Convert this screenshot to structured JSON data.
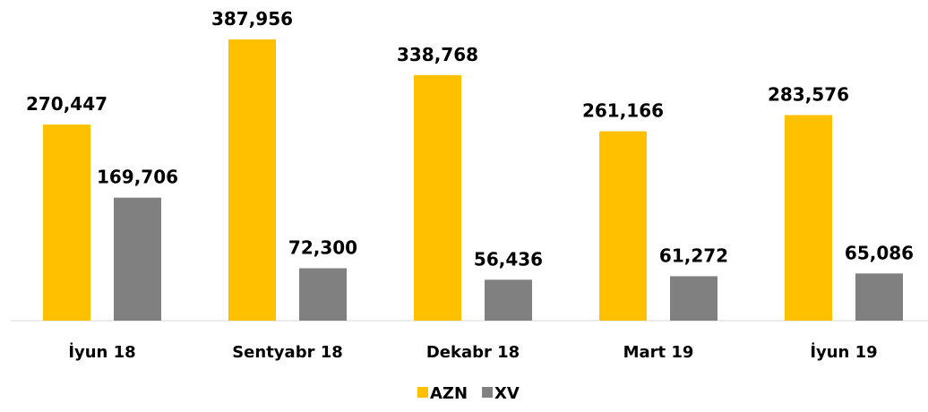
{
  "chart_data": {
    "type": "bar",
    "categories": [
      "İyun 18",
      "Sentyabr 18",
      "Dekabr 18",
      "Mart 19",
      "İyun 19"
    ],
    "series": [
      {
        "name": "AZN",
        "color": "#FFC000",
        "values": [
          270447,
          387956,
          338768,
          261166,
          283576
        ],
        "value_labels": [
          "270,447",
          "387,956",
          "338,768",
          "261,166",
          "283,576"
        ]
      },
      {
        "name": "XV",
        "color": "#808080",
        "values": [
          169706,
          72300,
          56436,
          61272,
          65086
        ],
        "value_labels": [
          "169,706",
          "72,300",
          "56,436",
          "61,272",
          "65,086"
        ]
      }
    ],
    "legend": "bottom"
  }
}
